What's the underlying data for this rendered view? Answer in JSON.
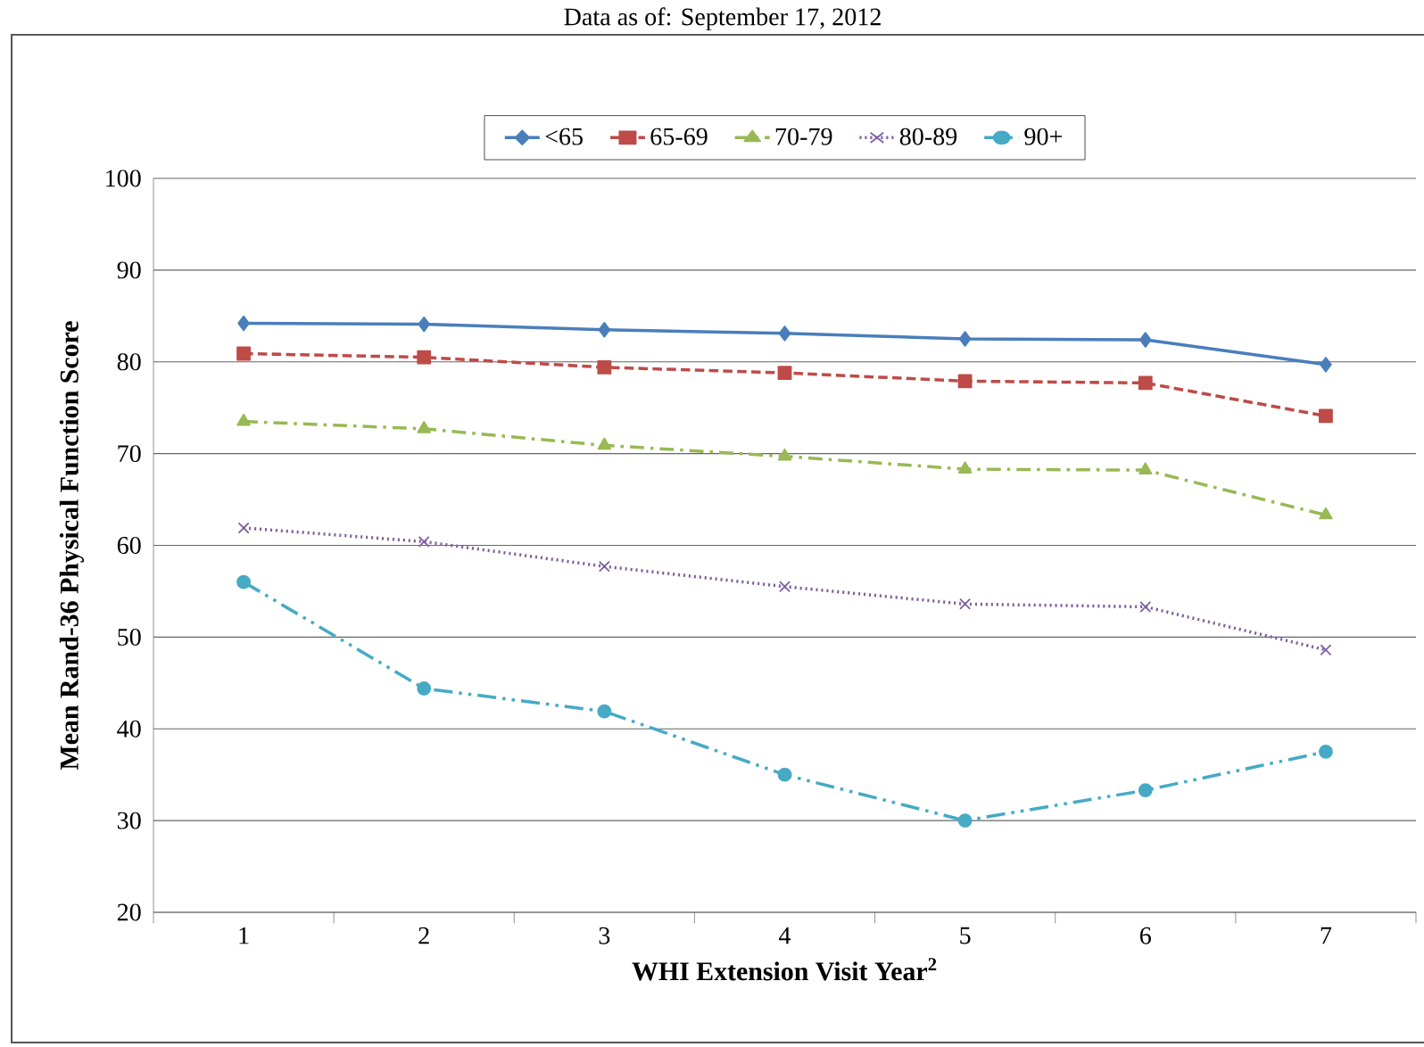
{
  "chart_data": {
    "type": "line",
    "subtitle": "Data as of: September 17, 2012",
    "xlabel": "WHI Extension Visit Year$^{2}$",
    "ylabel": "Mean Rand-36 Physical Function Score",
    "categories": [
      "1",
      "2",
      "3",
      "4",
      "5",
      "6",
      "7"
    ],
    "series": [
      {
        "name": "<65",
        "color": "#4a7ebb",
        "marker": "diamond",
        "line_style": "solid",
        "values": [
          84.2,
          84.1,
          83.5,
          83.1,
          82.5,
          82.4,
          79.7
        ]
      },
      {
        "name": "65-69",
        "color": "#be4b48",
        "marker": "square",
        "line_style": "dashed",
        "values": [
          80.9,
          80.5,
          79.4,
          78.8,
          77.9,
          77.7,
          74.1
        ]
      },
      {
        "name": "70-79",
        "color": "#98b954",
        "marker": "triangle",
        "line_style": "dashdot",
        "values": [
          73.5,
          72.7,
          70.9,
          69.7,
          68.3,
          68.2,
          63.3
        ]
      },
      {
        "name": "80-89",
        "color": "#7d5fa0",
        "marker": "cross",
        "line_style": "dotted",
        "values": [
          61.9,
          60.4,
          57.7,
          55.5,
          53.6,
          53.3,
          48.6
        ]
      },
      {
        "name": "90+",
        "color": "#46aac5",
        "marker": "circle",
        "line_style": "dashdotdot",
        "values": [
          56.0,
          44.4,
          41.9,
          35.0,
          30.0,
          33.3,
          37.5
        ]
      }
    ],
    "ylim": [
      20,
      100
    ],
    "yticks": [
      20,
      30,
      40,
      50,
      60,
      70,
      80,
      90,
      100
    ],
    "grid": "y",
    "legend": "top"
  }
}
